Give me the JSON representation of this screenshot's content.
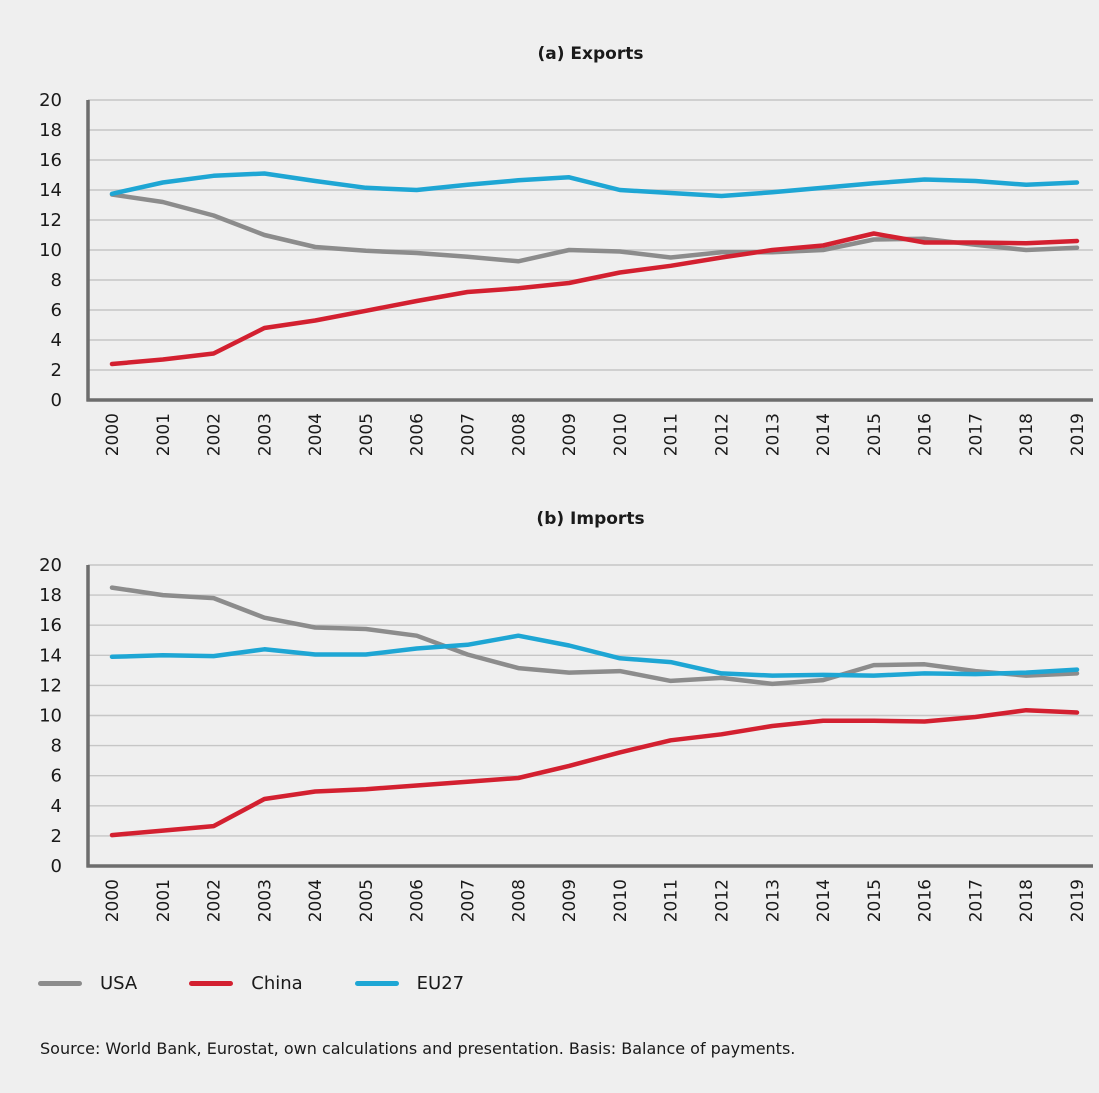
{
  "colors": {
    "USA": "#8c8c8c",
    "China": "#d32030",
    "EU27": "#1ea6d4"
  },
  "chart_data": [
    {
      "type": "line",
      "title": "(a) Exports",
      "x": [
        "2000",
        "2001",
        "2002",
        "2003",
        "2004",
        "2005",
        "2006",
        "2007",
        "2008",
        "2009",
        "2010",
        "2011",
        "2012",
        "2013",
        "2014",
        "2015",
        "2016",
        "2017",
        "2018",
        "2019"
      ],
      "ylim": [
        0,
        20
      ],
      "yticks": [
        0,
        2,
        4,
        6,
        8,
        10,
        12,
        14,
        16,
        18,
        20
      ],
      "grid": true,
      "series": [
        {
          "name": "USA",
          "values": [
            13.7,
            13.2,
            12.3,
            11.0,
            10.2,
            9.95,
            9.8,
            9.55,
            9.25,
            10.0,
            9.9,
            9.5,
            9.85,
            9.85,
            10.0,
            10.7,
            10.75,
            10.35,
            10.0,
            10.15
          ]
        },
        {
          "name": "China",
          "values": [
            2.4,
            2.7,
            3.1,
            4.8,
            5.3,
            5.95,
            6.6,
            7.2,
            7.45,
            7.8,
            8.5,
            8.95,
            9.5,
            10.0,
            10.3,
            11.1,
            10.5,
            10.5,
            10.45,
            10.6
          ]
        },
        {
          "name": "EU27",
          "values": [
            13.75,
            14.5,
            14.95,
            15.1,
            14.6,
            14.15,
            14.0,
            14.35,
            14.65,
            14.85,
            14.0,
            13.8,
            13.6,
            13.85,
            14.15,
            14.45,
            14.7,
            14.6,
            14.35,
            14.5
          ]
        }
      ]
    },
    {
      "type": "line",
      "title": "(b) Imports",
      "x": [
        "2000",
        "2001",
        "2002",
        "2003",
        "2004",
        "2005",
        "2006",
        "2007",
        "2008",
        "2009",
        "2010",
        "2011",
        "2012",
        "2013",
        "2014",
        "2015",
        "2016",
        "2017",
        "2018",
        "2019"
      ],
      "ylim": [
        0,
        20
      ],
      "yticks": [
        0,
        2,
        4,
        6,
        8,
        10,
        12,
        14,
        16,
        18,
        20
      ],
      "grid": true,
      "series": [
        {
          "name": "USA",
          "values": [
            18.5,
            18.0,
            17.8,
            16.5,
            15.85,
            15.75,
            15.3,
            14.05,
            13.15,
            12.85,
            12.95,
            12.3,
            12.5,
            12.1,
            12.35,
            13.35,
            13.4,
            12.95,
            12.65,
            12.8
          ]
        },
        {
          "name": "China",
          "values": [
            2.05,
            2.35,
            2.65,
            4.45,
            4.95,
            5.1,
            5.35,
            5.6,
            5.85,
            6.65,
            7.55,
            8.35,
            8.75,
            9.3,
            9.65,
            9.65,
            9.6,
            9.9,
            10.35,
            10.2
          ]
        },
        {
          "name": "EU27",
          "values": [
            13.9,
            14.0,
            13.95,
            14.4,
            14.05,
            14.05,
            14.45,
            14.7,
            15.3,
            14.65,
            13.8,
            13.55,
            12.8,
            12.65,
            12.7,
            12.65,
            12.8,
            12.75,
            12.85,
            13.05
          ]
        }
      ]
    }
  ],
  "legend": [
    {
      "label": "USA"
    },
    {
      "label": "China"
    },
    {
      "label": "EU27"
    }
  ],
  "source": "Source: World Bank, Eurostat, own calculations and presentation. Basis: Balance of payments."
}
